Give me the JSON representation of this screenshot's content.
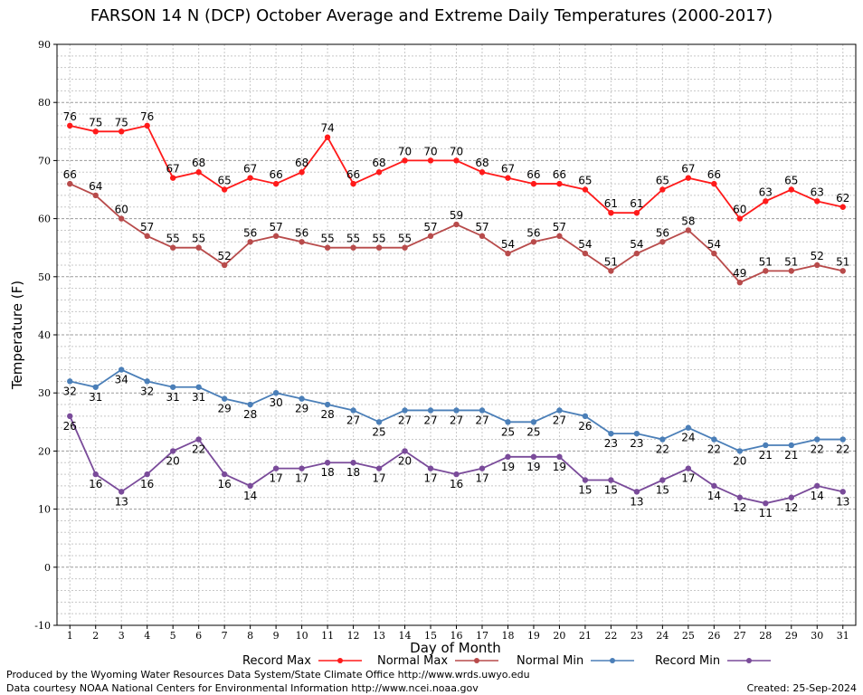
{
  "colors": {
    "record_max": "#ff1a1a",
    "normal_max": "#b84b4b",
    "normal_min": "#4b7fb8",
    "record_min": "#7a4b9a",
    "grid_minor": "#c8c8c8",
    "grid_major": "#9a9a9a"
  },
  "footer": {
    "line1": "Produced by the Wyoming Water Resources Data System/State Climate Office http://www.wrds.uwyo.edu",
    "line2": "Data courtesy NOAA National Centers for Environmental Information http://www.ncei.noaa.gov",
    "created": "Created:  25-Sep-2024"
  },
  "chart_data": {
    "type": "line",
    "title": "FARSON 14 N (DCP) October Average and Extreme Daily Temperatures (2000-2017)",
    "xlabel": "Day of Month",
    "ylabel": "Temperature (F)",
    "x": [
      1,
      2,
      3,
      4,
      5,
      6,
      7,
      8,
      9,
      10,
      11,
      12,
      13,
      14,
      15,
      16,
      17,
      18,
      19,
      20,
      21,
      22,
      23,
      24,
      25,
      26,
      27,
      28,
      29,
      30,
      31
    ],
    "xlim": [
      0.5,
      31.5
    ],
    "ylim": [
      -10,
      90
    ],
    "yticks": [
      -10,
      0,
      10,
      20,
      30,
      40,
      50,
      60,
      70,
      80,
      90
    ],
    "grid": true,
    "legend_position": "bottom",
    "series": [
      {
        "name": "Record Max",
        "color_key": "record_max",
        "label_position": "above",
        "values": [
          76,
          75,
          75,
          76,
          67,
          68,
          65,
          67,
          66,
          68,
          74,
          66,
          68,
          70,
          70,
          70,
          68,
          67,
          66,
          66,
          65,
          61,
          61,
          65,
          67,
          66,
          60,
          63,
          65,
          63,
          62
        ]
      },
      {
        "name": "Normal Max",
        "color_key": "normal_max",
        "label_position": "above",
        "values": [
          66,
          64,
          60,
          57,
          55,
          55,
          52,
          56,
          57,
          56,
          55,
          55,
          55,
          55,
          57,
          59,
          57,
          54,
          56,
          57,
          54,
          51,
          54,
          56,
          58,
          54,
          49,
          51,
          51,
          52,
          51
        ]
      },
      {
        "name": "Normal Min",
        "color_key": "normal_min",
        "label_position": "below",
        "values": [
          32,
          31,
          34,
          32,
          31,
          31,
          29,
          28,
          30,
          29,
          28,
          27,
          25,
          27,
          27,
          27,
          27,
          25,
          25,
          27,
          26,
          23,
          23,
          22,
          24,
          22,
          20,
          21,
          21,
          22,
          22
        ]
      },
      {
        "name": "Record Min",
        "color_key": "record_min",
        "label_position": "below",
        "values": [
          26,
          16,
          13,
          16,
          20,
          22,
          16,
          14,
          17,
          17,
          18,
          18,
          17,
          20,
          17,
          16,
          17,
          19,
          19,
          19,
          15,
          15,
          13,
          15,
          17,
          14,
          12,
          11,
          12,
          14,
          13
        ]
      }
    ]
  }
}
